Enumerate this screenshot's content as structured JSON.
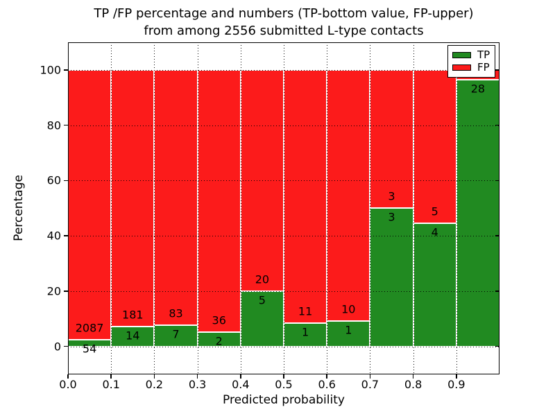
{
  "chart_data": {
    "type": "bar",
    "stacked": true,
    "title_lines": [
      "TP /FP percentage and numbers (TP-bottom value, FP-upper)",
      "from among 2556 submitted L-type contacts"
    ],
    "total_submitted_contacts": 2556,
    "xlabel": "Predicted probability",
    "ylabel": "Percentage",
    "xlim": [
      0.0,
      1.0
    ],
    "ylim": [
      -10,
      110
    ],
    "grid": true,
    "bin_edges": [
      0.0,
      0.1,
      0.2,
      0.3,
      0.4,
      0.5,
      0.6,
      0.7,
      0.8,
      0.9,
      1.0
    ],
    "x_tick_labels": [
      "0.0",
      "0.1",
      "0.2",
      "0.3",
      "0.4",
      "0.5",
      "0.6",
      "0.7",
      "0.8",
      "0.9"
    ],
    "y_tick_labels": [
      "0",
      "20",
      "40",
      "60",
      "80",
      "100"
    ],
    "series": [
      {
        "name": "TP",
        "color": "#218a21",
        "position": "bottom",
        "counts": [
          54,
          14,
          7,
          2,
          5,
          1,
          1,
          3,
          4,
          28
        ]
      },
      {
        "name": "FP",
        "color": "#fc1b1b",
        "position": "top",
        "counts": [
          2087,
          181,
          83,
          36,
          20,
          11,
          10,
          3,
          5,
          1
        ]
      }
    ],
    "bar_totals_are_percent": 100,
    "legend": {
      "position": "upper right",
      "entries": [
        {
          "label": "TP",
          "color": "#218a21"
        },
        {
          "label": "FP",
          "color": "#fc1b1b"
        }
      ]
    }
  }
}
